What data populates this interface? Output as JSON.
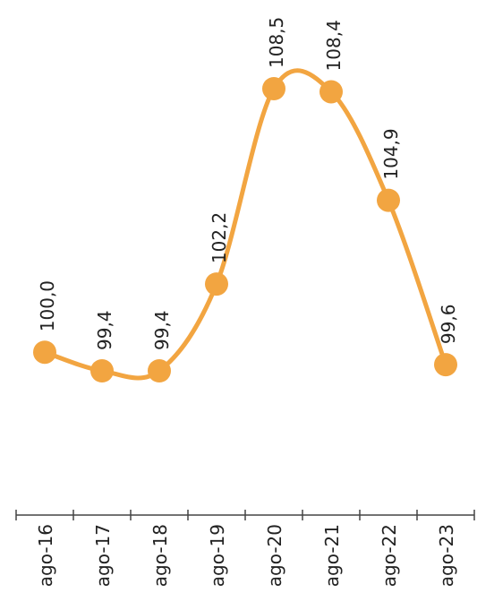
{
  "chart_data": {
    "type": "line",
    "title": "",
    "xlabel": "",
    "ylabel": "",
    "categories": [
      "ago-16",
      "ago-17",
      "ago-18",
      "ago-19",
      "ago-20",
      "ago-21",
      "ago-22",
      "ago-23"
    ],
    "series": [
      {
        "values": [
          100.0,
          99.4,
          99.4,
          102.2,
          108.5,
          108.4,
          104.9,
          99.6
        ],
        "value_labels": [
          "100,0",
          "99,4",
          "99,4",
          "102,2",
          "108,5",
          "108,4",
          "104,9",
          "99,6"
        ],
        "color": "#f2a541"
      }
    ],
    "smooth": true,
    "markers": true,
    "grid": false,
    "legend": "none",
    "text_orientation": "rotated-90"
  }
}
